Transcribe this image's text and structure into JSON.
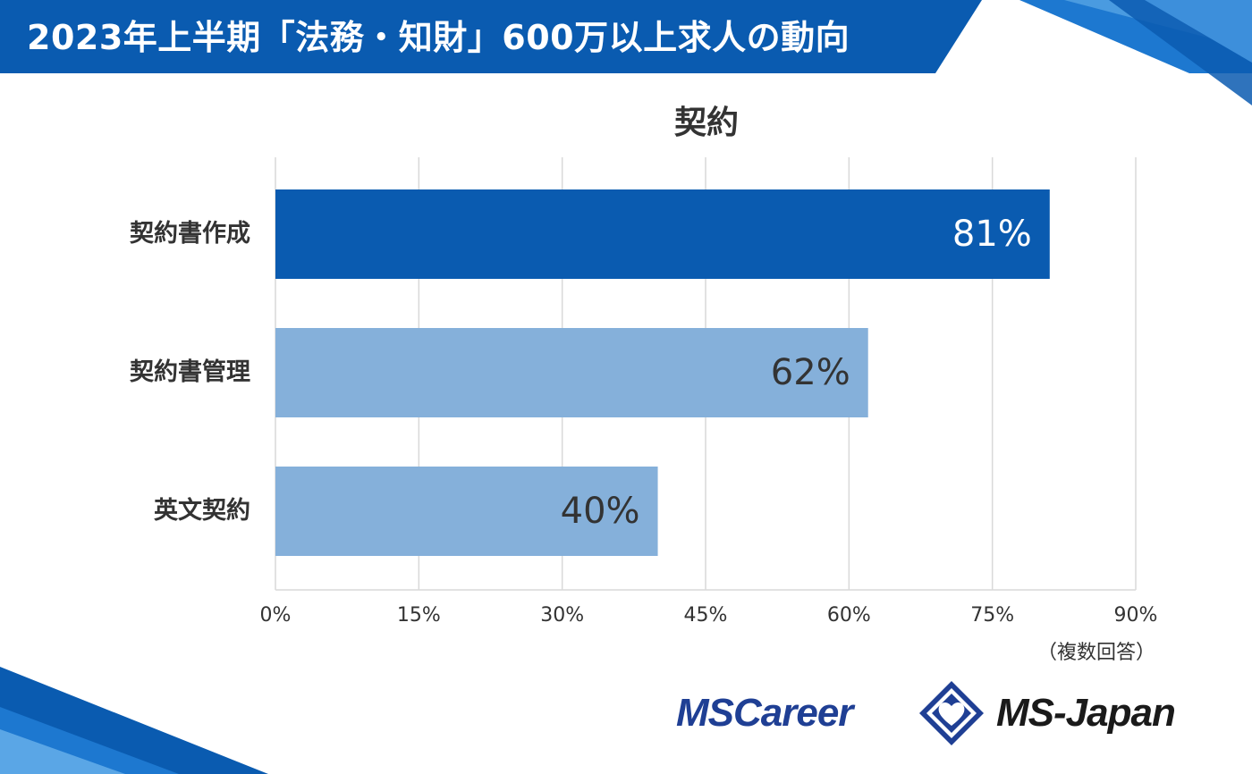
{
  "header": {
    "title": "2023年上半期「法務・知財」600万以上求人の動向"
  },
  "chart_data": {
    "type": "bar",
    "orientation": "horizontal",
    "title": "契約",
    "categories": [
      "契約書作成",
      "契約書管理",
      "英文契約"
    ],
    "values": [
      81,
      62,
      40
    ],
    "value_labels": [
      "81%",
      "62%",
      "40%"
    ],
    "xlim": [
      0,
      90
    ],
    "x_ticks": [
      "0%",
      "15%",
      "30%",
      "45%",
      "60%",
      "75%",
      "90%"
    ],
    "grid": true,
    "note": "（複数回答）"
  },
  "colors": {
    "header_bg": "#0a5bb0",
    "highlight_bar": "#0a5bb0",
    "normal_bar": "#85b0da",
    "grid": "#d9d9d9",
    "logo_blue": "#1f3f94",
    "logo_dark": "#1a1a1a"
  },
  "logos": {
    "left": "MSCareer",
    "right": "MS-Japan"
  }
}
